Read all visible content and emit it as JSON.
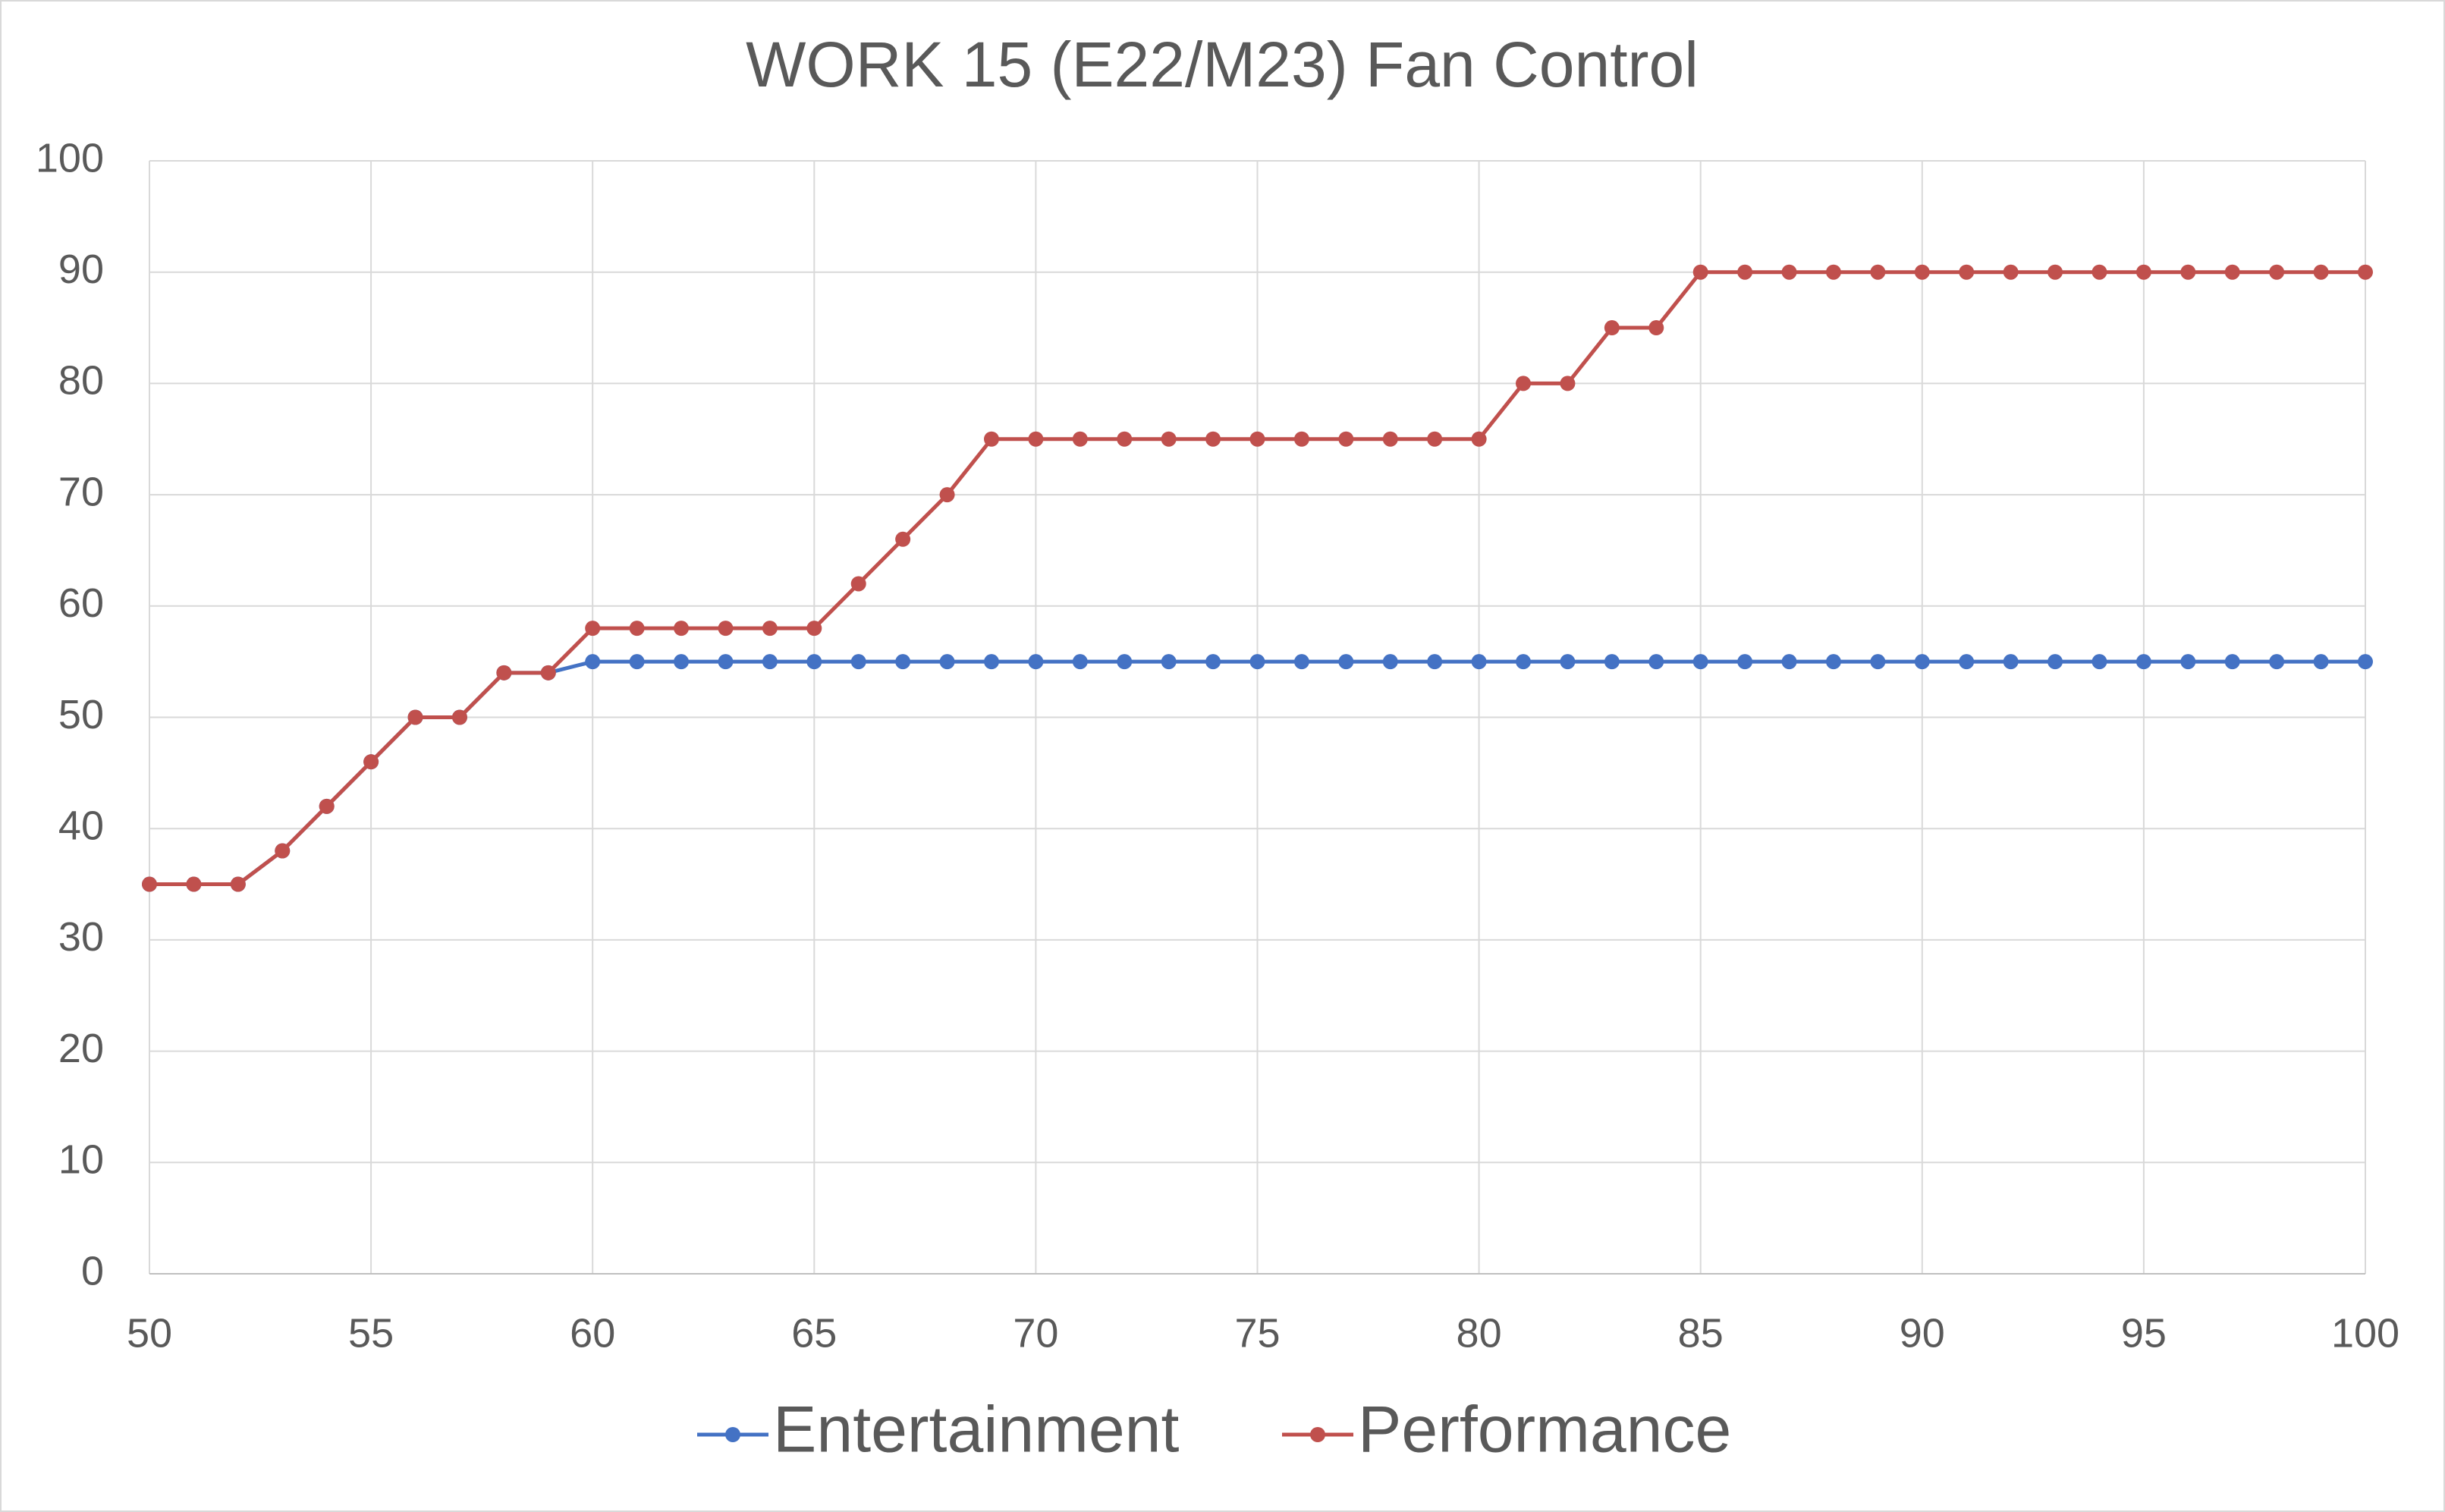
{
  "chart_data": {
    "type": "line",
    "title": "WORK 15 (E22/M23) Fan Control",
    "x": [
      50,
      51,
      52,
      53,
      54,
      55,
      56,
      57,
      58,
      59,
      60,
      61,
      62,
      63,
      64,
      65,
      66,
      67,
      68,
      69,
      70,
      71,
      72,
      73,
      74,
      75,
      76,
      77,
      78,
      79,
      80,
      81,
      82,
      83,
      84,
      85,
      86,
      87,
      88,
      89,
      90,
      91,
      92,
      93,
      94,
      95,
      96,
      97,
      98,
      99,
      100
    ],
    "series": [
      {
        "name": "Entertainment",
        "color": "#4472c4",
        "values": [
          35,
          35,
          35,
          38,
          42,
          46,
          50,
          50,
          54,
          54,
          55,
          55,
          55,
          55,
          55,
          55,
          55,
          55,
          55,
          55,
          55,
          55,
          55,
          55,
          55,
          55,
          55,
          55,
          55,
          55,
          55,
          55,
          55,
          55,
          55,
          55,
          55,
          55,
          55,
          55,
          55,
          55,
          55,
          55,
          55,
          55,
          55,
          55,
          55,
          55,
          55
        ]
      },
      {
        "name": "Performance",
        "color": "#c0504d",
        "values": [
          35,
          35,
          35,
          38,
          42,
          46,
          50,
          50,
          54,
          54,
          58,
          58,
          58,
          58,
          58,
          58,
          62,
          66,
          70,
          75,
          75,
          75,
          75,
          75,
          75,
          75,
          75,
          75,
          75,
          75,
          75,
          80,
          80,
          85,
          85,
          90,
          90,
          90,
          90,
          90,
          90,
          90,
          90,
          90,
          90,
          90,
          90,
          90,
          90,
          90,
          90
        ]
      }
    ],
    "xlim": [
      50,
      100
    ],
    "xticks": [
      50,
      55,
      60,
      65,
      70,
      75,
      80,
      85,
      90,
      95,
      100
    ],
    "ylim": [
      0,
      100
    ],
    "yticks": [
      0,
      10,
      20,
      30,
      40,
      50,
      60,
      70,
      80,
      90,
      100
    ],
    "grid": true,
    "legend": "bottom"
  }
}
